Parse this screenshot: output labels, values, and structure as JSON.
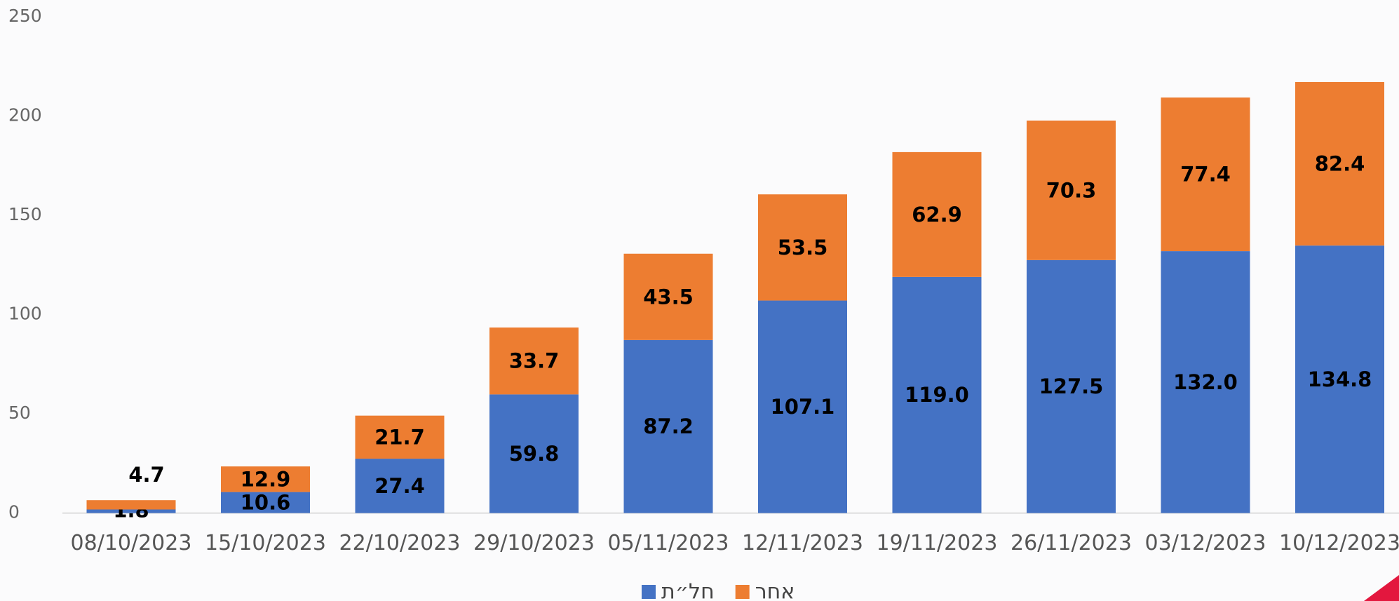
{
  "chart_data": {
    "type": "bar",
    "stacked": true,
    "x": [
      "08/10/2023",
      "15/10/2023",
      "22/10/2023",
      "29/10/2023",
      "05/11/2023",
      "12/11/2023",
      "19/11/2023",
      "26/11/2023",
      "03/12/2023",
      "10/12/2023"
    ],
    "series": [
      {
        "name": "חל״ת",
        "color": "#4472c4",
        "values": [
          1.8,
          10.6,
          27.4,
          59.8,
          87.2,
          107.1,
          119.0,
          127.5,
          132.0,
          134.8
        ],
        "value_labels": [
          "1.8",
          "10.6",
          "27.4",
          "59.8",
          "87.2",
          "107.1",
          "119.0",
          "127.5",
          "132.0",
          "134.8"
        ]
      },
      {
        "name": "אחר",
        "color": "#ed7d31",
        "values": [
          4.7,
          12.9,
          21.7,
          33.7,
          43.5,
          53.5,
          62.9,
          70.3,
          77.4,
          82.4
        ]
      }
    ],
    "ylim": [
      0,
      250
    ],
    "yticks": [
      0,
      50,
      100,
      150,
      200,
      250
    ],
    "grid": false,
    "legend": "bottom"
  }
}
